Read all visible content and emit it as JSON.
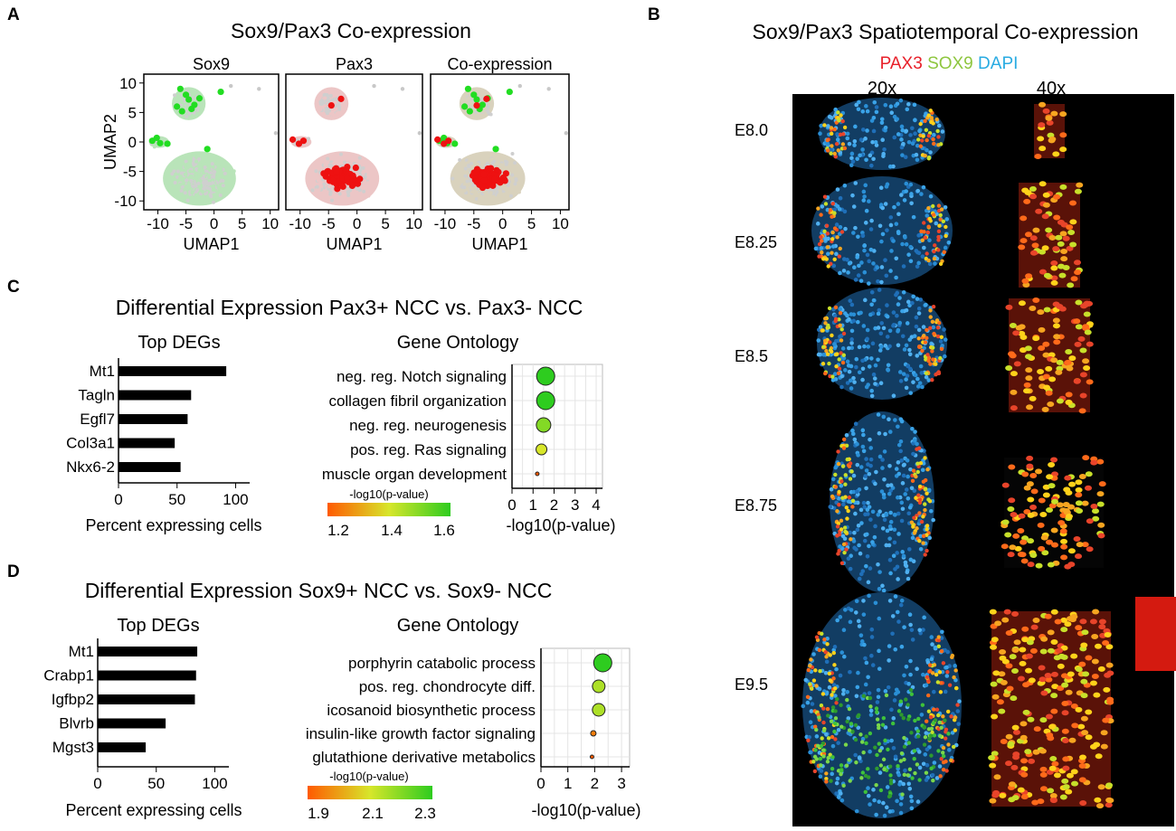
{
  "panel_letters": [
    "A",
    "B",
    "C",
    "D"
  ],
  "panelA": {
    "title": "Sox9/Pax3 Co-expression",
    "subplots": [
      {
        "name": "Sox9",
        "point_color": "#22dd22",
        "cloud_color": "#b9e4b9"
      },
      {
        "name": "Pax3",
        "point_color": "#ee1111",
        "cloud_color": "#ecc6c6"
      },
      {
        "name": "Co-expression",
        "point_color": "mixed",
        "cloud_color": "#d9d2bd"
      }
    ],
    "xlabel": "UMAP1",
    "ylabel": "UMAP2",
    "xticks": [
      "-10",
      "-5",
      "0",
      "5",
      "10"
    ],
    "yticks": [
      "10",
      "5",
      "0",
      "-5",
      "-10"
    ],
    "xlim": [
      -12.5,
      11.5
    ],
    "ylim": [
      -11.5,
      11.5
    ]
  },
  "panelB": {
    "title": "Sox9/Pax3 Spatiotemporal Co-expression",
    "legend": [
      {
        "label": "PAX3",
        "color": "#e8202a"
      },
      {
        "label": "SOX9",
        "color": "#8ec63f"
      },
      {
        "label": "DAPI",
        "color": "#29abe2"
      }
    ],
    "magnifications": [
      "20x",
      "40x"
    ],
    "stages": [
      "E8.0",
      "E8.25",
      "E8.5",
      "E8.75",
      "E9.5"
    ]
  },
  "panelC": {
    "title": "Differential Expression Pax3+ NCC vs. Pax3- NCC",
    "bar_title": "Top DEGs",
    "bar_xlabel": "Percent expressing cells",
    "go_title": "Gene Ontology",
    "go_xlabel": "-log10(p-value)",
    "colorbar_title": "-log10(p-value)",
    "colorbar_ticks": [
      "1.2",
      "1.4",
      "1.6"
    ]
  },
  "panelD": {
    "title": "Differential Expression Sox9+ NCC vs. Sox9- NCC",
    "bar_title": "Top DEGs",
    "bar_xlabel": "Percent expressing cells",
    "go_title": "Gene Ontology",
    "go_xlabel": "-log10(p-value)",
    "colorbar_title": "-log10(p-value)",
    "colorbar_ticks": [
      "1.9",
      "2.1",
      "2.3"
    ]
  },
  "chart_data": [
    {
      "type": "bar",
      "panel": "C",
      "orientation": "horizontal",
      "categories": [
        "Mt1",
        "Tagln",
        "Egfl7",
        "Col3a1",
        "Nkx6-2"
      ],
      "values": [
        92,
        62,
        59,
        48,
        53
      ],
      "xlim": [
        0,
        112
      ],
      "xticks": [
        0,
        50,
        100
      ],
      "xlabel": "Percent expressing cells"
    },
    {
      "type": "scatter",
      "panel": "C",
      "categories": [
        "neg. reg. Notch signaling",
        "collagen fibril organization",
        "neg. reg. neurogenesis",
        "pos. reg. Ras signaling",
        "muscle organ development"
      ],
      "values": [
        1.6,
        1.6,
        1.5,
        1.4,
        1.2
      ],
      "xlim": [
        0,
        4.3
      ],
      "xticks": [
        0,
        1,
        2,
        3,
        4
      ],
      "color_scale": [
        1.2,
        1.6
      ],
      "grid": true,
      "xlabel": "-log10(p-value)"
    },
    {
      "type": "bar",
      "panel": "D",
      "orientation": "horizontal",
      "categories": [
        "Mt1",
        "Crabp1",
        "Igfbp2",
        "Blvrb",
        "Mgst3"
      ],
      "values": [
        85,
        84,
        83,
        58,
        41
      ],
      "xlim": [
        0,
        112
      ],
      "xticks": [
        0,
        50,
        100
      ],
      "xlabel": "Percent expressing cells"
    },
    {
      "type": "scatter",
      "panel": "D",
      "categories": [
        "porphyrin catabolic process",
        "pos. reg. chondrocyte diff.",
        "icosanoid biosynthetic process",
        "insulin-like growth factor signaling",
        "glutathione derivative metabolics"
      ],
      "values": [
        2.3,
        2.15,
        2.15,
        1.95,
        1.9
      ],
      "xlim": [
        0,
        3.3
      ],
      "xticks": [
        0,
        1,
        2,
        3
      ],
      "color_scale": [
        1.9,
        2.3
      ],
      "grid": true,
      "xlabel": "-log10(p-value)"
    }
  ]
}
